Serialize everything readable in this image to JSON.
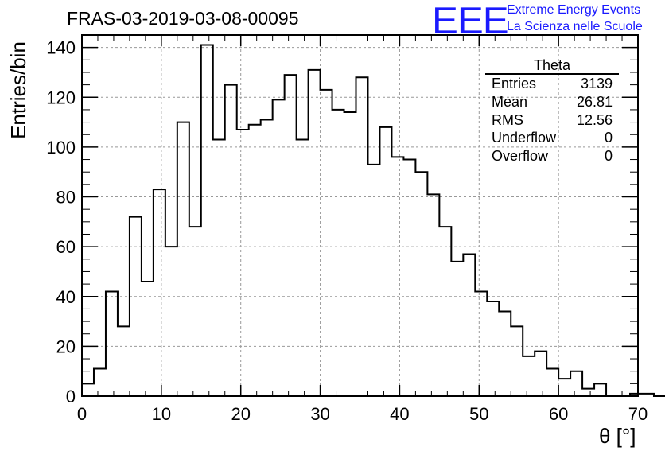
{
  "page": {
    "title": "FRAS-03-2019-03-08-00095",
    "logo_text": "EEE",
    "logo_line1": "Extreme Energy Events",
    "logo_line2": "La Scienza nelle Scuole",
    "brand_color": "#1a1aff"
  },
  "stats_box": {
    "title": "Theta",
    "rows": [
      {
        "label": "Entries",
        "value": "3139"
      },
      {
        "label": "Mean",
        "value": "26.81"
      },
      {
        "label": "RMS",
        "value": "12.56"
      },
      {
        "label": "Underflow",
        "value": "0"
      },
      {
        "label": "Overflow",
        "value": "0"
      }
    ]
  },
  "chart_data": {
    "type": "bar",
    "style": "step-histogram",
    "title": "FRAS-03-2019-03-08-00095",
    "xlabel": "θ [°]",
    "ylabel": "Entries/bin",
    "xlim": [
      0,
      70
    ],
    "ylim": [
      0,
      145
    ],
    "grid": true,
    "x_ticks": [
      0,
      10,
      20,
      30,
      40,
      50,
      60,
      70
    ],
    "y_ticks": [
      0,
      20,
      40,
      60,
      80,
      100,
      120,
      140
    ],
    "bin_width": 1.5,
    "bin_edges_start": 0,
    "values": [
      5,
      11,
      42,
      28,
      72,
      46,
      83,
      60,
      110,
      68,
      141,
      103,
      125,
      107,
      109,
      111,
      119,
      129,
      103,
      131,
      123,
      115,
      114,
      128,
      93,
      108,
      96,
      95,
      90,
      81,
      68,
      54,
      57,
      42,
      38,
      34,
      28,
      16,
      18,
      11,
      7,
      10,
      3,
      5,
      0,
      0,
      1,
      1,
      0
    ]
  }
}
